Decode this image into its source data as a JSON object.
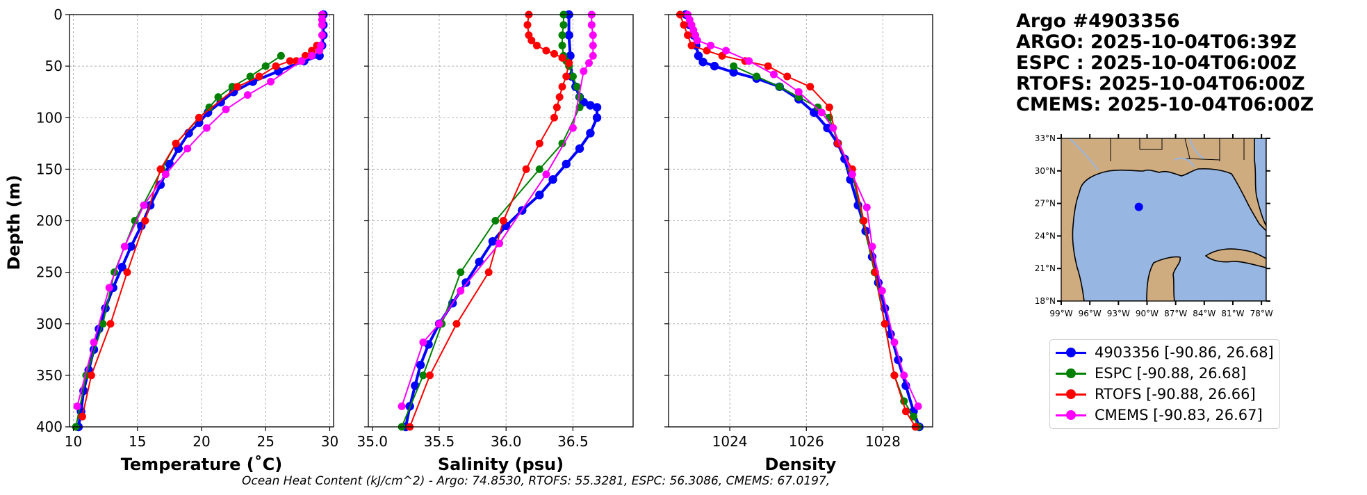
{
  "title_block": {
    "line1": "Argo #4903356",
    "line2": "ARGO: 2025-10-04T06:39Z",
    "line3": "ESPC : 2025-10-04T06:00Z",
    "line4": "RTOFS: 2025-10-04T06:00Z",
    "line5": "CMEMS: 2025-10-04T06:00Z"
  },
  "footer": "Ocean Heat Content (kJ/cm^2) - Argo: 74.8530,  RTOFS: 55.3281,  ESPC: 56.3086,  CMEMS: 67.0197,",
  "colors": {
    "argo": "#0000ff",
    "espc": "#008000",
    "rtofs": "#ff0000",
    "cmems": "#ff00ff",
    "ocean": "#97b6e1",
    "land": "#cfac80"
  },
  "legend": [
    {
      "name": "4903356 [-90.86, 26.68]",
      "color": "#0000ff"
    },
    {
      "name": "ESPC [-90.88, 26.68]",
      "color": "#008000"
    },
    {
      "name": "RTOFS [-90.88, 26.66]",
      "color": "#ff0000"
    },
    {
      "name": "CMEMS [-90.83, 26.67]",
      "color": "#ff00ff"
    }
  ],
  "map": {
    "lat_ticks": [
      "33°N",
      "30°N",
      "27°N",
      "24°N",
      "21°N",
      "18°N"
    ],
    "lon_ticks": [
      "99°W",
      "96°W",
      "93°W",
      "90°W",
      "87°W",
      "84°W",
      "81°W",
      "78°W"
    ],
    "float_lon": -90.86,
    "float_lat": 26.68
  },
  "chart_data": [
    {
      "type": "line",
      "title": "",
      "xlabel": "Temperature (˚C)",
      "ylabel": "Depth (m)",
      "xlim": [
        9.7,
        30.3
      ],
      "ylim": [
        400,
        0
      ],
      "xticks": [
        10,
        15,
        20,
        25,
        30
      ],
      "xtick_labels": [
        "10",
        "15",
        "20",
        "25",
        "30"
      ],
      "yticks": [
        0,
        50,
        100,
        150,
        200,
        250,
        300,
        350,
        400
      ],
      "ytick_labels": [
        "0",
        "50",
        "100",
        "150",
        "200",
        "250",
        "300",
        "350",
        "400"
      ],
      "grid": true,
      "series": [
        {
          "name": "4903356",
          "key": "argo",
          "x": [
            29.5,
            29.5,
            29.5,
            29.4,
            29.2,
            28.0,
            26.0,
            24.0,
            22.5,
            21.5,
            20.5,
            19.8,
            19.0,
            18.2,
            17.5,
            16.8,
            16.0,
            15.3,
            14.5,
            13.8,
            13.1,
            12.5,
            12.0,
            11.6,
            11.2,
            10.8,
            10.6,
            10.4
          ],
          "y": [
            0,
            10,
            20,
            30,
            40,
            45,
            55,
            65,
            75,
            85,
            95,
            105,
            115,
            130,
            145,
            165,
            185,
            205,
            225,
            245,
            265,
            285,
            305,
            325,
            345,
            365,
            385,
            400
          ]
        },
        {
          "name": "ESPC",
          "key": "espc",
          "x": [
            26.2,
            25.0,
            23.8,
            22.4,
            21.3,
            20.6,
            18.0,
            16.9,
            14.8,
            13.2,
            12.3,
            11.0,
            10.2
          ],
          "y": [
            40,
            50,
            60,
            70,
            80,
            90,
            125,
            150,
            200,
            250,
            300,
            350,
            400
          ]
        },
        {
          "name": "RTOFS",
          "key": "rtofs",
          "x": [
            29.0,
            28.6,
            28.1,
            27.4,
            26.9,
            25.8,
            24.5,
            22.8,
            19.8,
            18.0,
            16.8,
            15.6,
            14.2,
            12.9,
            11.4,
            10.7
          ],
          "y": [
            30,
            35,
            40,
            45,
            45,
            50,
            60,
            70,
            100,
            125,
            150,
            200,
            250,
            300,
            350,
            390
          ]
        },
        {
          "name": "CMEMS",
          "key": "cmems",
          "x": [
            29.4,
            29.4,
            29.4,
            29.4,
            29.3,
            29.2,
            28.6,
            27.8,
            25.4,
            23.6,
            21.9,
            20.4,
            18.9,
            17.2,
            15.5,
            14.0,
            12.8,
            11.6,
            10.3
          ],
          "y": [
            0,
            5,
            10,
            20,
            30,
            35,
            40,
            45,
            65,
            78,
            92,
            110,
            130,
            155,
            185,
            225,
            265,
            318,
            380
          ]
        }
      ]
    },
    {
      "type": "line",
      "title": "",
      "xlabel": "Salinity (psu)",
      "ylabel": "",
      "xlim": [
        34.97,
        36.95
      ],
      "ylim": [
        400,
        0
      ],
      "xticks": [
        35.0,
        35.5,
        36.0,
        36.5
      ],
      "xtick_labels": [
        "35.0",
        "35.5",
        "36.0",
        "36.5"
      ],
      "grid": true,
      "series": [
        {
          "name": "4903356",
          "key": "argo",
          "x": [
            36.47,
            36.47,
            36.48,
            36.49,
            36.52,
            36.55,
            36.58,
            36.63,
            36.68,
            36.68,
            36.63,
            36.55,
            36.45,
            36.35,
            36.25,
            36.12,
            36.0,
            35.9,
            35.8,
            35.7,
            35.6,
            35.5,
            35.42,
            35.36,
            35.32,
            35.28,
            35.25
          ],
          "y": [
            0,
            20,
            40,
            60,
            70,
            80,
            85,
            88,
            90,
            100,
            115,
            130,
            145,
            160,
            175,
            190,
            205,
            220,
            240,
            260,
            280,
            300,
            320,
            340,
            360,
            380,
            400
          ]
        },
        {
          "name": "ESPC",
          "key": "espc",
          "x": [
            36.43,
            36.43,
            36.42,
            36.42,
            36.43,
            36.45,
            36.47,
            36.5,
            36.53,
            36.55,
            36.55,
            36.42,
            36.25,
            35.92,
            35.66,
            35.52,
            35.38,
            35.22
          ],
          "y": [
            0,
            10,
            20,
            30,
            40,
            45,
            50,
            60,
            70,
            80,
            90,
            125,
            150,
            200,
            250,
            300,
            350,
            400
          ]
        },
        {
          "name": "RTOFS",
          "key": "rtofs",
          "x": [
            36.17,
            36.16,
            36.17,
            36.19,
            36.23,
            36.3,
            36.36,
            36.42,
            36.47,
            36.45,
            36.42,
            36.4,
            36.38,
            36.36,
            36.25,
            36.15,
            35.98,
            35.87,
            35.63,
            35.43,
            35.28
          ],
          "y": [
            0,
            10,
            20,
            25,
            30,
            35,
            38,
            42,
            47,
            60,
            70,
            80,
            90,
            100,
            125,
            150,
            200,
            250,
            300,
            350,
            400
          ]
        },
        {
          "name": "CMEMS",
          "key": "cmems",
          "x": [
            36.64,
            36.64,
            36.65,
            36.65,
            36.65,
            36.62,
            36.58,
            36.5,
            36.3,
            35.95,
            35.66,
            35.5,
            35.38,
            35.22
          ],
          "y": [
            0,
            10,
            20,
            30,
            40,
            47,
            55,
            110,
            155,
            222,
            268,
            300,
            318,
            380
          ]
        }
      ]
    },
    {
      "type": "line",
      "title": "",
      "xlabel": "Density",
      "ylabel": "",
      "xlim": [
        1022.4,
        1029.3
      ],
      "ylim": [
        400,
        0
      ],
      "xticks": [
        1024,
        1026,
        1028
      ],
      "xtick_labels": [
        "1024",
        "1026",
        "1028"
      ],
      "grid": true,
      "series": [
        {
          "name": "4903356",
          "key": "argo",
          "x": [
            1022.85,
            1022.95,
            1023.05,
            1023.12,
            1023.18,
            1023.3,
            1023.6,
            1024.1,
            1024.7,
            1025.3,
            1025.8,
            1026.2,
            1026.55,
            1026.82,
            1027.0,
            1027.15,
            1027.35,
            1027.55,
            1027.72,
            1027.88,
            1028.05,
            1028.2,
            1028.4,
            1028.6,
            1028.8,
            1028.95
          ],
          "y": [
            0,
            10,
            20,
            30,
            40,
            46,
            50,
            56,
            62,
            70,
            82,
            95,
            110,
            125,
            140,
            160,
            185,
            210,
            235,
            260,
            285,
            310,
            335,
            360,
            385,
            400
          ]
        },
        {
          "name": "ESPC",
          "key": "espc",
          "x": [
            1024.1,
            1024.7,
            1025.3,
            1025.8,
            1026.3,
            1026.6,
            1026.83,
            1027.17,
            1027.48,
            1027.78,
            1028.05,
            1028.3,
            1028.55,
            1028.8,
            1028.92
          ],
          "y": [
            50,
            60,
            70,
            80,
            90,
            100,
            125,
            150,
            200,
            250,
            300,
            350,
            375,
            390,
            400
          ]
        },
        {
          "name": "RTOFS",
          "key": "rtofs",
          "x": [
            1022.7,
            1022.8,
            1022.9,
            1023.0,
            1023.4,
            1023.8,
            1024.4,
            1025.0,
            1025.5,
            1026.1,
            1026.6,
            1026.82,
            1027.2,
            1027.5,
            1027.8,
            1028.05,
            1028.3,
            1028.6,
            1028.85
          ],
          "y": [
            0,
            10,
            20,
            30,
            35,
            40,
            45,
            50,
            60,
            70,
            90,
            125,
            150,
            200,
            250,
            300,
            350,
            385,
            400
          ]
        },
        {
          "name": "CMEMS",
          "key": "cmems",
          "x": [
            1022.9,
            1022.95,
            1023.0,
            1023.05,
            1023.1,
            1023.15,
            1023.5,
            1023.9,
            1024.5,
            1025.15,
            1025.8,
            1026.4,
            1026.7,
            1027.2,
            1027.58,
            1027.72,
            1027.98,
            1028.3,
            1028.55,
            1028.92
          ],
          "y": [
            0,
            5,
            10,
            15,
            20,
            25,
            30,
            35,
            45,
            58,
            75,
            95,
            110,
            155,
            187,
            225,
            268,
            318,
            350,
            380
          ]
        }
      ]
    }
  ]
}
